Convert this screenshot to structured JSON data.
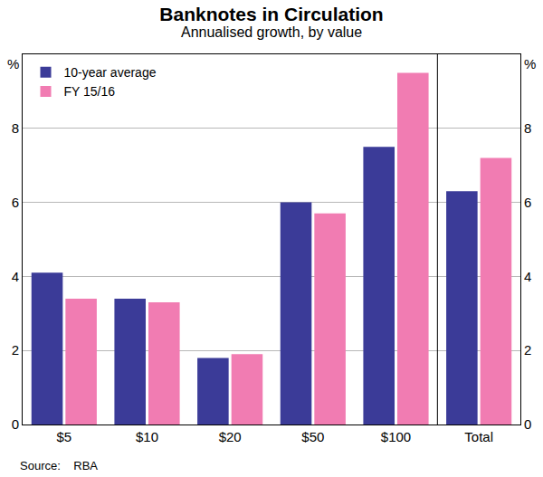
{
  "chart_data": {
    "type": "bar",
    "title": "Banknotes in Circulation",
    "subtitle": "Annualised growth, by value",
    "ylabel": "%",
    "source": "Source:    RBA",
    "categories": [
      "$5",
      "$10",
      "$20",
      "$50",
      "$100",
      "Total"
    ],
    "series": [
      {
        "name": "10-year average",
        "color": "#3b3b98",
        "values": [
          4.1,
          3.4,
          1.8,
          6.0,
          7.5,
          6.3
        ]
      },
      {
        "name": "FY 15/16",
        "color": "#f17cb2",
        "values": [
          3.4,
          3.3,
          1.9,
          5.7,
          9.5,
          7.2
        ]
      }
    ],
    "ylim": [
      0,
      10
    ],
    "yticks": [
      0,
      2,
      4,
      6,
      8
    ],
    "grid": true,
    "legend": "upper left"
  }
}
